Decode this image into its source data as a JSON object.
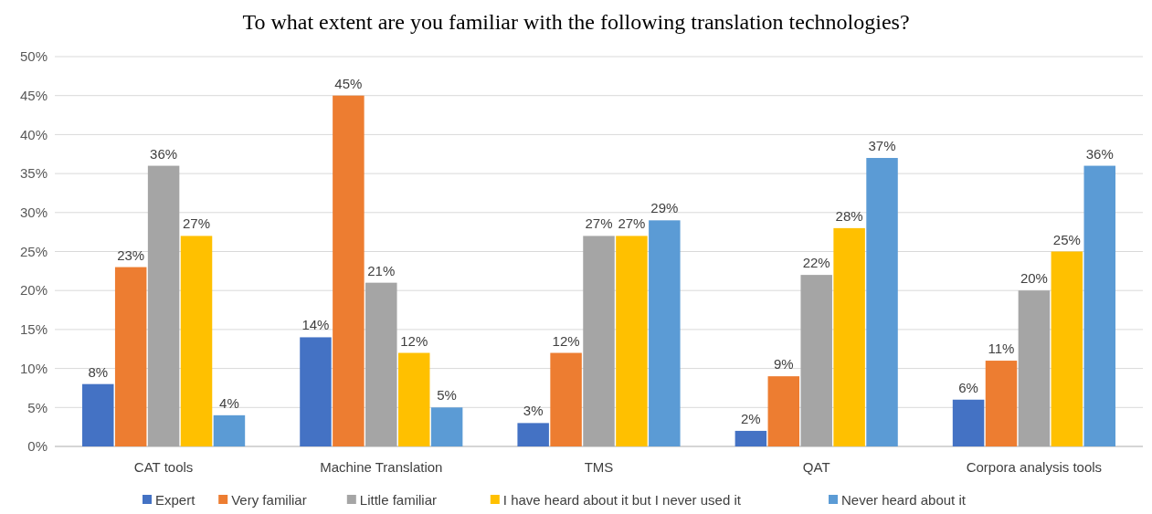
{
  "chart_data": {
    "type": "bar",
    "title": "To what extent are you familiar with the following translation technologies?",
    "categories": [
      "CAT tools",
      "Machine Translation",
      "TMS",
      "QAT",
      "Corpora analysis tools"
    ],
    "series": [
      {
        "name": "Expert",
        "color": "#4472c4",
        "values": [
          8,
          14,
          3,
          2,
          6
        ],
        "value_labels": [
          "8%",
          "14%",
          "3%",
          "2%",
          "6%"
        ]
      },
      {
        "name": "Very familiar",
        "color": "#ed7d31",
        "values": [
          23,
          45,
          12,
          9,
          11
        ],
        "value_labels": [
          "23%",
          "45%",
          "12%",
          "9%",
          "11%"
        ]
      },
      {
        "name": "Little familiar",
        "color": "#a5a5a5",
        "values": [
          36,
          21,
          27,
          22,
          20
        ],
        "value_labels": [
          "36%",
          "21%",
          "27%",
          "22%",
          "20%"
        ]
      },
      {
        "name": "I have heard about it but I never used it",
        "color": "#ffc000",
        "values": [
          27,
          12,
          27,
          28,
          25
        ],
        "value_labels": [
          "27%",
          "12%",
          "27%",
          "28%",
          "25%"
        ]
      },
      {
        "name": "Never heard about it",
        "color": "#5b9bd5",
        "values": [
          4,
          5,
          29,
          37,
          36
        ],
        "value_labels": [
          "4%",
          "5%",
          "29%",
          "37%",
          "36%"
        ]
      }
    ],
    "ylim": [
      0,
      50
    ],
    "yticks": [
      {
        "value": 0,
        "label": "0%"
      },
      {
        "value": 5,
        "label": "5%"
      },
      {
        "value": 10,
        "label": "10%"
      },
      {
        "value": 15,
        "label": "15%"
      },
      {
        "value": 20,
        "label": "20%"
      },
      {
        "value": 25,
        "label": "25%"
      },
      {
        "value": 30,
        "label": "30%"
      },
      {
        "value": 35,
        "label": "35%"
      },
      {
        "value": 40,
        "label": "40%"
      },
      {
        "value": 45,
        "label": "45%"
      },
      {
        "value": 50,
        "label": "50%"
      }
    ],
    "grid": "y",
    "legend": "bottom"
  }
}
